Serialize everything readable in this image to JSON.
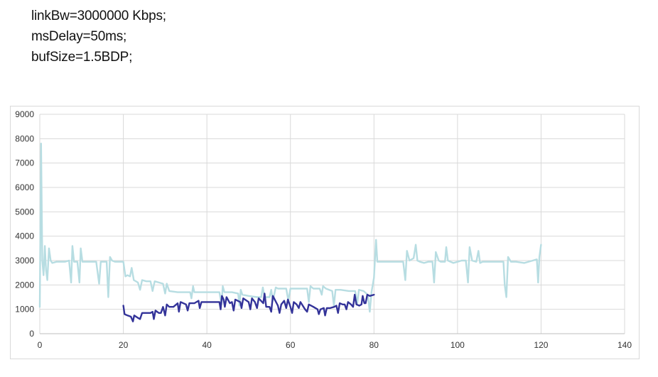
{
  "config": {
    "lines": [
      "linkBw=3000000 Kbps;",
      "msDelay=50ms;",
      "bufSize=1.5BDP;"
    ]
  },
  "chart_data": {
    "type": "line",
    "title": "",
    "xlabel": "",
    "ylabel": "",
    "xlim": [
      0,
      140
    ],
    "ylim": [
      0,
      9000
    ],
    "x_ticks": [
      0,
      20,
      40,
      60,
      80,
      100,
      120,
      140
    ],
    "y_ticks": [
      0,
      1000,
      2000,
      3000,
      4000,
      5000,
      6000,
      7000,
      8000,
      9000
    ],
    "grid": true,
    "legend": "none",
    "series": [
      {
        "color": "#b7dde2",
        "points": [
          [
            0,
            1100
          ],
          [
            0.3,
            7800
          ],
          [
            0.6,
            3000
          ],
          [
            0.9,
            2400
          ],
          [
            1.2,
            3600
          ],
          [
            1.5,
            2600
          ],
          [
            1.8,
            2200
          ],
          [
            2.2,
            3500
          ],
          [
            2.6,
            3000
          ],
          [
            3,
            2900
          ],
          [
            4,
            2950
          ],
          [
            5,
            2950
          ],
          [
            6,
            2950
          ],
          [
            7,
            3000
          ],
          [
            7.5,
            2100
          ],
          [
            7.8,
            3600
          ],
          [
            8.2,
            2950
          ],
          [
            9,
            2950
          ],
          [
            9.5,
            2100
          ],
          [
            9.8,
            3500
          ],
          [
            10.2,
            2950
          ],
          [
            12,
            2950
          ],
          [
            13.5,
            2950
          ],
          [
            14.2,
            2050
          ],
          [
            14.6,
            2950
          ],
          [
            16,
            2950
          ],
          [
            16.4,
            1500
          ],
          [
            16.8,
            3150
          ],
          [
            17.3,
            3000
          ],
          [
            18,
            2950
          ],
          [
            19,
            2950
          ],
          [
            20,
            2950
          ],
          [
            20.5,
            2350
          ],
          [
            21,
            2400
          ],
          [
            21.6,
            2350
          ],
          [
            22,
            2700
          ],
          [
            22.5,
            2200
          ],
          [
            23.5,
            2100
          ],
          [
            24,
            1800
          ],
          [
            24.5,
            2200
          ],
          [
            25.5,
            2150
          ],
          [
            26.5,
            2150
          ],
          [
            27,
            1750
          ],
          [
            27.5,
            2150
          ],
          [
            28.5,
            2100
          ],
          [
            29.5,
            2050
          ],
          [
            30,
            1650
          ],
          [
            30.4,
            2050
          ],
          [
            31,
            1750
          ],
          [
            33,
            1700
          ],
          [
            35,
            1700
          ],
          [
            36,
            1700
          ],
          [
            36.3,
            1450
          ],
          [
            36.7,
            1950
          ],
          [
            37,
            1700
          ],
          [
            38,
            1700
          ],
          [
            40,
            1700
          ],
          [
            42,
            1700
          ],
          [
            43,
            1700
          ],
          [
            43.5,
            1200
          ],
          [
            43.8,
            1950
          ],
          [
            44.2,
            1700
          ],
          [
            46,
            1700
          ],
          [
            47.5,
            1650
          ],
          [
            47.8,
            1150
          ],
          [
            48.1,
            1800
          ],
          [
            48.5,
            1600
          ],
          [
            50,
            1550
          ],
          [
            52,
            1500
          ],
          [
            53,
            1500
          ],
          [
            53.4,
            1900
          ],
          [
            53.8,
            1500
          ],
          [
            55,
            1500
          ],
          [
            55.4,
            1800
          ],
          [
            55.8,
            1350
          ],
          [
            56.5,
            1900
          ],
          [
            57,
            1850
          ],
          [
            58,
            1850
          ],
          [
            59,
            1850
          ],
          [
            59.5,
            1350
          ],
          [
            60,
            1850
          ],
          [
            62,
            1850
          ],
          [
            64,
            1850
          ],
          [
            64.4,
            1300
          ],
          [
            64.8,
            1950
          ],
          [
            65.5,
            1850
          ],
          [
            67,
            1850
          ],
          [
            67.5,
            1600
          ],
          [
            67.8,
            1950
          ],
          [
            68.5,
            1850
          ],
          [
            70,
            1750
          ],
          [
            70.4,
            1150
          ],
          [
            70.8,
            1800
          ],
          [
            72,
            1800
          ],
          [
            74,
            1750
          ],
          [
            75.5,
            1750
          ],
          [
            76,
            1250
          ],
          [
            76.4,
            1800
          ],
          [
            77.5,
            1750
          ],
          [
            78.5,
            1600
          ],
          [
            79,
            900
          ],
          [
            79.4,
            1700
          ],
          [
            80,
            2300
          ],
          [
            80.5,
            3850
          ],
          [
            80.8,
            2950
          ],
          [
            82,
            2950
          ],
          [
            84,
            2950
          ],
          [
            86,
            2950
          ],
          [
            87,
            2950
          ],
          [
            87.5,
            2200
          ],
          [
            87.9,
            3400
          ],
          [
            88.5,
            3000
          ],
          [
            89.5,
            3100
          ],
          [
            90,
            3650
          ],
          [
            90.4,
            3000
          ],
          [
            91,
            2950
          ],
          [
            92,
            2900
          ],
          [
            93,
            2950
          ],
          [
            94,
            2950
          ],
          [
            94.4,
            2100
          ],
          [
            94.8,
            3350
          ],
          [
            95.5,
            3000
          ],
          [
            96,
            2950
          ],
          [
            97,
            2950
          ],
          [
            97.3,
            3550
          ],
          [
            97.7,
            3000
          ],
          [
            99,
            2900
          ],
          [
            100,
            2950
          ],
          [
            101,
            3000
          ],
          [
            102,
            3000
          ],
          [
            102.5,
            2100
          ],
          [
            102.9,
            3550
          ],
          [
            103.5,
            3000
          ],
          [
            104.5,
            2950
          ],
          [
            105,
            3400
          ],
          [
            105.4,
            2900
          ],
          [
            106,
            2950
          ],
          [
            108,
            2950
          ],
          [
            110,
            2950
          ],
          [
            111,
            2950
          ],
          [
            111.3,
            2000
          ],
          [
            111.7,
            1500
          ],
          [
            112.1,
            3150
          ],
          [
            112.8,
            2950
          ],
          [
            114,
            2950
          ],
          [
            116,
            2900
          ],
          [
            118,
            3000
          ],
          [
            119,
            3050
          ],
          [
            119.3,
            2100
          ],
          [
            119.6,
            3150
          ],
          [
            120,
            3650
          ]
        ]
      },
      {
        "color": "#333399",
        "points": [
          [
            20,
            1150
          ],
          [
            20.3,
            800
          ],
          [
            21,
            750
          ],
          [
            21.8,
            700
          ],
          [
            22.3,
            500
          ],
          [
            22.6,
            750
          ],
          [
            23.5,
            650
          ],
          [
            24,
            600
          ],
          [
            24.5,
            850
          ],
          [
            25.5,
            850
          ],
          [
            26.5,
            850
          ],
          [
            27,
            900
          ],
          [
            27.3,
            600
          ],
          [
            27.7,
            950
          ],
          [
            28.5,
            850
          ],
          [
            29,
            850
          ],
          [
            29.5,
            1100
          ],
          [
            30,
            750
          ],
          [
            30.4,
            1200
          ],
          [
            31,
            1100
          ],
          [
            32,
            1100
          ],
          [
            33,
            1250
          ],
          [
            33.3,
            900
          ],
          [
            33.7,
            1300
          ],
          [
            35,
            1200
          ],
          [
            35.4,
            950
          ],
          [
            35.8,
            1250
          ],
          [
            37,
            1250
          ],
          [
            38,
            1350
          ],
          [
            38.3,
            1050
          ],
          [
            38.7,
            1300
          ],
          [
            40,
            1300
          ],
          [
            42,
            1300
          ],
          [
            43,
            1300
          ],
          [
            43.3,
            1000
          ],
          [
            43.6,
            1550
          ],
          [
            44,
            1400
          ],
          [
            44.3,
            1100
          ],
          [
            44.7,
            1500
          ],
          [
            45.5,
            1250
          ],
          [
            46,
            1300
          ],
          [
            46.4,
            950
          ],
          [
            46.8,
            1400
          ],
          [
            48,
            1300
          ],
          [
            48.3,
            1050
          ],
          [
            48.7,
            1450
          ],
          [
            50,
            1300
          ],
          [
            50.4,
            1000
          ],
          [
            50.8,
            1450
          ],
          [
            51.5,
            1300
          ],
          [
            52,
            1050
          ],
          [
            52.4,
            1450
          ],
          [
            53.5,
            1250
          ],
          [
            53.8,
            1650
          ],
          [
            54.2,
            1100
          ],
          [
            55,
            1100
          ],
          [
            55.4,
            900
          ],
          [
            55.8,
            1550
          ],
          [
            57,
            1150
          ],
          [
            57.4,
            850
          ],
          [
            57.8,
            1200
          ],
          [
            58.5,
            1350
          ],
          [
            59,
            1050
          ],
          [
            59.4,
            1400
          ],
          [
            60,
            1100
          ],
          [
            60.4,
            850
          ],
          [
            60.8,
            1300
          ],
          [
            61.5,
            1200
          ],
          [
            62,
            1050
          ],
          [
            62.4,
            1300
          ],
          [
            63.5,
            1000
          ],
          [
            64,
            900
          ],
          [
            64.4,
            1200
          ],
          [
            65.5,
            1100
          ],
          [
            66.5,
            1000
          ],
          [
            66.8,
            800
          ],
          [
            67.2,
            1000
          ],
          [
            68,
            1050
          ],
          [
            68.3,
            750
          ],
          [
            68.7,
            1050
          ],
          [
            69.5,
            1050
          ],
          [
            70.5,
            1100
          ],
          [
            71,
            1150
          ],
          [
            71.4,
            850
          ],
          [
            71.8,
            1250
          ],
          [
            72.5,
            1200
          ],
          [
            73,
            1200
          ],
          [
            73.4,
            1000
          ],
          [
            73.8,
            1300
          ],
          [
            74.5,
            1200
          ],
          [
            75,
            1100
          ],
          [
            75.4,
            1600
          ],
          [
            75.8,
            1200
          ],
          [
            76.5,
            1150
          ],
          [
            77,
            1200
          ],
          [
            77.3,
            1550
          ],
          [
            77.7,
            1250
          ],
          [
            78,
            1250
          ],
          [
            78.4,
            1600
          ],
          [
            79,
            1550
          ],
          [
            80,
            1600
          ]
        ]
      }
    ]
  }
}
